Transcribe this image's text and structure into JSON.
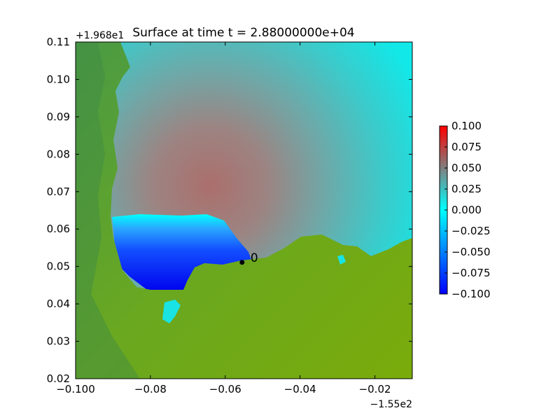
{
  "chart_data": {
    "type": "heatmap",
    "title": "Surface at time t = 2.88000000e+04",
    "xlabel": "",
    "ylabel": "",
    "x_offset_label": "−1.55e2",
    "y_offset_label": "+1.968e1",
    "xlim": [
      -0.1,
      -0.01
    ],
    "ylim": [
      0.02,
      0.11
    ],
    "x_ticks": [
      -0.1,
      -0.08,
      -0.06,
      -0.04,
      -0.02
    ],
    "x_tick_labels": [
      "−0.100",
      "−0.08",
      "−0.06",
      "−0.04",
      "−0.02"
    ],
    "y_ticks": [
      0.02,
      0.03,
      0.04,
      0.05,
      0.06,
      0.07,
      0.08,
      0.09,
      0.1,
      0.11
    ],
    "y_tick_labels": [
      "0.02",
      "0.03",
      "0.04",
      "0.05",
      "0.06",
      "0.07",
      "0.08",
      "0.09",
      "0.10",
      "0.11"
    ],
    "colorbar": {
      "min": -0.1,
      "max": 0.1,
      "ticks": [
        0.1,
        0.075,
        0.05,
        0.025,
        0.0,
        -0.025,
        -0.05,
        -0.075,
        -0.1
      ],
      "tick_labels": [
        "0.100",
        "0.075",
        "0.050",
        "0.025",
        "0.000",
        "−0.025",
        "−0.050",
        "−0.075",
        "−0.100"
      ],
      "colors": [
        "#0000ff",
        "#00ffff",
        "#ff0000"
      ]
    },
    "gauge": {
      "label": "0",
      "x": -0.0555,
      "y": 0.0511
    },
    "grid": false
  },
  "colors": {
    "land": "#7aab0a",
    "land_dark": "#3f8a45",
    "water_cyan": "#19e3e3",
    "water_blue": "#0000ee",
    "water_red": "#b06a68"
  }
}
